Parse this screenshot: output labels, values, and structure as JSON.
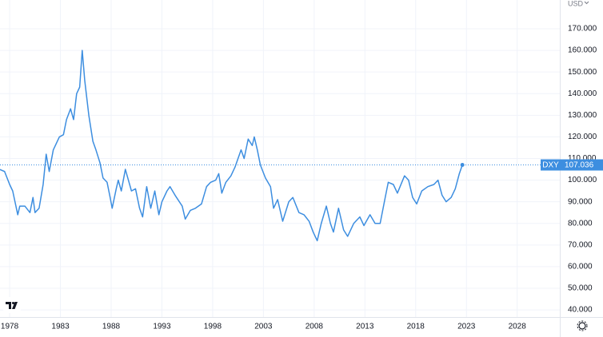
{
  "chart_data": {
    "type": "line",
    "currency": "USD",
    "x": [
      1977.0,
      1977.5,
      1978.0,
      1978.3,
      1978.8,
      1979.0,
      1979.5,
      1980.0,
      1980.3,
      1980.5,
      1980.9,
      1981.3,
      1981.6,
      1981.9,
      1982.3,
      1982.6,
      1982.9,
      1983.3,
      1983.6,
      1984.0,
      1984.3,
      1984.6,
      1984.9,
      1985.15,
      1985.4,
      1985.8,
      1986.2,
      1986.5,
      1986.9,
      1987.2,
      1987.6,
      1987.9,
      1988.1,
      1988.5,
      1988.7,
      1989.0,
      1989.4,
      1989.7,
      1990.0,
      1990.4,
      1990.8,
      1991.1,
      1991.5,
      1991.9,
      1992.3,
      1992.7,
      1993.0,
      1993.5,
      1993.8,
      1994.3,
      1995.0,
      1995.3,
      1995.8,
      1996.3,
      1996.9,
      1997.4,
      1997.8,
      1998.3,
      1998.6,
      1998.9,
      1999.3,
      1999.8,
      2000.2,
      2000.8,
      2001.1,
      2001.5,
      2001.9,
      2002.1,
      2002.4,
      2002.7,
      2003.2,
      2003.7,
      2004.0,
      2004.4,
      2004.9,
      2005.5,
      2005.9,
      2006.5,
      2007.0,
      2007.5,
      2007.9,
      2008.3,
      2008.7,
      2009.2,
      2009.6,
      2009.9,
      2010.4,
      2010.9,
      2011.3,
      2011.9,
      2012.5,
      2012.9,
      2013.5,
      2014.0,
      2014.5,
      2015.0,
      2015.3,
      2015.8,
      2016.2,
      2016.9,
      2017.3,
      2017.7,
      2018.1,
      2018.6,
      2019.2,
      2019.8,
      2020.2,
      2020.6,
      2021.0,
      2021.5,
      2021.9,
      2022.3,
      2022.6
    ],
    "series": [
      {
        "name": "DXY",
        "color": "#3d8ee0",
        "values": [
          105,
          104,
          98,
          95,
          84,
          88,
          88,
          85,
          92,
          85,
          87,
          98,
          112,
          104,
          114,
          117,
          120,
          121,
          128,
          133,
          128,
          140,
          143,
          160,
          146,
          130,
          118,
          114,
          108,
          101,
          99,
          92,
          87,
          96,
          100,
          95,
          105,
          100,
          95,
          96,
          87,
          83,
          97,
          87,
          95,
          84,
          90,
          95,
          97,
          93,
          88,
          82,
          86,
          87,
          89,
          97,
          99,
          100,
          103,
          94,
          99,
          102,
          106,
          114,
          110,
          119,
          116,
          120,
          114,
          107,
          101,
          97,
          87,
          91,
          81,
          90,
          92,
          85,
          84,
          81,
          76,
          72,
          80,
          88,
          80,
          76,
          87,
          77,
          74,
          80,
          83,
          79,
          84,
          80,
          80,
          92,
          99,
          98,
          94,
          102,
          100,
          92,
          89,
          95,
          97,
          98,
          100,
          93,
          90,
          92,
          96,
          103,
          107.036
        ]
      }
    ],
    "xlim": [
      1977.05,
      2032.2
    ],
    "xticks": [
      1978,
      1983,
      1988,
      1993,
      1998,
      2003,
      2008,
      2013,
      2018,
      2023,
      2028
    ],
    "ylim": [
      36.7,
      183.3
    ],
    "yticks": [
      {
        "value": 40,
        "label": "40.000"
      },
      {
        "value": 50,
        "label": "50.000"
      },
      {
        "value": 60,
        "label": "60.000"
      },
      {
        "value": 70,
        "label": "70.000"
      },
      {
        "value": 80,
        "label": "80.000"
      },
      {
        "value": 90,
        "label": "90.000"
      },
      {
        "value": 100,
        "label": "100.000"
      },
      {
        "value": 110,
        "label": "110.000"
      },
      {
        "value": 120,
        "label": "120.000"
      },
      {
        "value": 130,
        "label": "130.000"
      },
      {
        "value": 140,
        "label": "140.000"
      },
      {
        "value": 150,
        "label": "150.000"
      },
      {
        "value": 160,
        "label": "160.000"
      },
      {
        "value": 170,
        "label": "170.000"
      }
    ],
    "grid": true
  }
}
